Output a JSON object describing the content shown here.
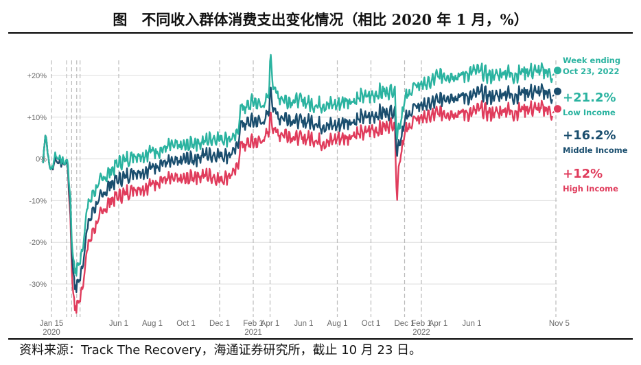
{
  "title": "图　不同收入群体消费支出变化情况（相比 2020 年 1 月，%）",
  "source": "资料来源：Track The Recovery，海通证券研究所，截止 10 月 23 日。",
  "colors": {
    "low_income": "#2bb3a0",
    "middle_income": "#1a4e6e",
    "high_income": "#e03c5c",
    "gridline": "#dddddd",
    "vline": "#bbbbbb"
  },
  "chart_data": {
    "type": "line",
    "title": "",
    "xlabel": "",
    "ylabel": "",
    "ylim": [
      -37,
      26
    ],
    "yticks": [
      "+20%",
      "+10%",
      "0%",
      "-10%",
      "-20%",
      "-30%"
    ],
    "ytick_values": [
      20,
      10,
      0,
      -10,
      -20,
      -30
    ],
    "xticks": [
      {
        "month": 0.5,
        "label": "Jan 15",
        "sub": "2020"
      },
      {
        "month": 4.5,
        "label": "Jun 1",
        "sub": ""
      },
      {
        "month": 6.5,
        "label": "Aug 1",
        "sub": ""
      },
      {
        "month": 8.5,
        "label": "Oct 1",
        "sub": ""
      },
      {
        "month": 10.5,
        "label": "Dec 1",
        "sub": ""
      },
      {
        "month": 12.5,
        "label": "Feb 1",
        "sub": "2021"
      },
      {
        "month": 13.5,
        "label": "Apr 1",
        "sub": ""
      },
      {
        "month": 15.5,
        "label": "Jun 1",
        "sub": ""
      },
      {
        "month": 17.5,
        "label": "Aug 1",
        "sub": ""
      },
      {
        "month": 19.5,
        "label": "Oct 1",
        "sub": ""
      },
      {
        "month": 21.5,
        "label": "Dec 1",
        "sub": ""
      },
      {
        "month": 22.5,
        "label": "Feb 1",
        "sub": "2022"
      },
      {
        "month": 23.5,
        "label": "Apr 1",
        "sub": ""
      },
      {
        "month": 25.5,
        "label": "Jun 1",
        "sub": ""
      },
      {
        "month": 30.7,
        "label": "Nov 5",
        "sub": ""
      }
    ],
    "vlines_months": [
      0.5,
      1.4,
      1.7,
      2.0,
      2.2,
      4.5,
      10.5,
      12.5,
      13.5,
      17.5,
      19.5,
      21.5,
      22.5,
      30.5
    ],
    "series": [
      {
        "name": "Low Income",
        "values": [
          [
            0.0,
            -1
          ],
          [
            0.15,
            7
          ],
          [
            0.3,
            0
          ],
          [
            0.5,
            -3
          ],
          [
            0.7,
            1
          ],
          [
            1.0,
            0
          ],
          [
            1.3,
            -1
          ],
          [
            1.45,
            0
          ],
          [
            1.6,
            -8
          ],
          [
            1.75,
            -22
          ],
          [
            1.9,
            -27
          ],
          [
            2.05,
            -26
          ],
          [
            2.3,
            -23
          ],
          [
            2.6,
            -12
          ],
          [
            3.0,
            -8
          ],
          [
            3.5,
            -5
          ],
          [
            4.0,
            -3
          ],
          [
            4.5,
            -1
          ],
          [
            5.0,
            0
          ],
          [
            5.5,
            1
          ],
          [
            6.0,
            1
          ],
          [
            6.5,
            2
          ],
          [
            7.0,
            2
          ],
          [
            7.5,
            3
          ],
          [
            8.0,
            3
          ],
          [
            8.5,
            3
          ],
          [
            9.0,
            4
          ],
          [
            9.5,
            4
          ],
          [
            10.0,
            5
          ],
          [
            10.5,
            5
          ],
          [
            11.0,
            5
          ],
          [
            11.5,
            5
          ],
          [
            11.8,
            13
          ],
          [
            12.0,
            12
          ],
          [
            12.3,
            13
          ],
          [
            12.5,
            14
          ],
          [
            12.8,
            13
          ],
          [
            13.2,
            13
          ],
          [
            13.4,
            15
          ],
          [
            13.55,
            25
          ],
          [
            13.7,
            17
          ],
          [
            14.0,
            15
          ],
          [
            14.5,
            14
          ],
          [
            15.0,
            14
          ],
          [
            15.5,
            14
          ],
          [
            16.0,
            13
          ],
          [
            16.5,
            13
          ],
          [
            17.0,
            13
          ],
          [
            17.5,
            13
          ],
          [
            18.0,
            14
          ],
          [
            18.5,
            14
          ],
          [
            19.0,
            15
          ],
          [
            19.5,
            15
          ],
          [
            20.0,
            16
          ],
          [
            20.5,
            16
          ],
          [
            20.9,
            17
          ],
          [
            21.05,
            6
          ],
          [
            21.2,
            8
          ],
          [
            21.5,
            14
          ],
          [
            22.0,
            17
          ],
          [
            22.5,
            18
          ],
          [
            23.0,
            18
          ],
          [
            23.5,
            20
          ],
          [
            24.0,
            20
          ],
          [
            24.5,
            20
          ],
          [
            25.0,
            20
          ],
          [
            25.5,
            21
          ],
          [
            26.0,
            21
          ],
          [
            26.5,
            20
          ],
          [
            27.0,
            20
          ],
          [
            27.5,
            21
          ],
          [
            28.0,
            20
          ],
          [
            28.5,
            21
          ],
          [
            29.0,
            21
          ],
          [
            29.5,
            21
          ],
          [
            30.0,
            21
          ],
          [
            30.3,
            20
          ]
        ],
        "end_value": 21.2,
        "end_label": "+21.2%"
      },
      {
        "name": "Middle Income",
        "values": [
          [
            0.0,
            -1
          ],
          [
            0.15,
            7
          ],
          [
            0.3,
            0
          ],
          [
            0.5,
            -3
          ],
          [
            0.7,
            0
          ],
          [
            1.0,
            -1
          ],
          [
            1.3,
            -1
          ],
          [
            1.45,
            -1
          ],
          [
            1.6,
            -10
          ],
          [
            1.75,
            -25
          ],
          [
            1.9,
            -31
          ],
          [
            2.05,
            -30
          ],
          [
            2.3,
            -27
          ],
          [
            2.6,
            -17
          ],
          [
            3.0,
            -12
          ],
          [
            3.5,
            -9
          ],
          [
            4.0,
            -6
          ],
          [
            4.5,
            -5
          ],
          [
            5.0,
            -4
          ],
          [
            5.5,
            -3
          ],
          [
            6.0,
            -3
          ],
          [
            6.5,
            -2
          ],
          [
            7.0,
            -1
          ],
          [
            7.5,
            -1
          ],
          [
            8.0,
            -1
          ],
          [
            8.5,
            0
          ],
          [
            9.0,
            0
          ],
          [
            9.5,
            1
          ],
          [
            10.0,
            1
          ],
          [
            10.5,
            1
          ],
          [
            11.0,
            1
          ],
          [
            11.5,
            2
          ],
          [
            11.8,
            9
          ],
          [
            12.0,
            8
          ],
          [
            12.3,
            9
          ],
          [
            12.5,
            9
          ],
          [
            12.8,
            9
          ],
          [
            13.2,
            9
          ],
          [
            13.4,
            11
          ],
          [
            13.55,
            17
          ],
          [
            13.7,
            12
          ],
          [
            14.0,
            10
          ],
          [
            14.5,
            10
          ],
          [
            15.0,
            9
          ],
          [
            15.5,
            9
          ],
          [
            16.0,
            9
          ],
          [
            16.5,
            8
          ],
          [
            17.0,
            8
          ],
          [
            17.5,
            8
          ],
          [
            18.0,
            9
          ],
          [
            18.5,
            9
          ],
          [
            19.0,
            10
          ],
          [
            19.5,
            10
          ],
          [
            20.0,
            11
          ],
          [
            20.5,
            11
          ],
          [
            20.9,
            12
          ],
          [
            21.05,
            2
          ],
          [
            21.2,
            4
          ],
          [
            21.5,
            9
          ],
          [
            22.0,
            12
          ],
          [
            22.5,
            13
          ],
          [
            23.0,
            13
          ],
          [
            23.5,
            14
          ],
          [
            24.0,
            15
          ],
          [
            24.5,
            15
          ],
          [
            25.0,
            15
          ],
          [
            25.5,
            15
          ],
          [
            26.0,
            16
          ],
          [
            26.5,
            15
          ],
          [
            27.0,
            15
          ],
          [
            27.5,
            16
          ],
          [
            28.0,
            15
          ],
          [
            28.5,
            16
          ],
          [
            29.0,
            16
          ],
          [
            29.5,
            16
          ],
          [
            30.0,
            16
          ],
          [
            30.3,
            15
          ]
        ],
        "end_value": 16.2,
        "end_label": "+16.2%"
      },
      {
        "name": "High Income",
        "values": [
          [
            0.0,
            -1
          ],
          [
            0.15,
            7
          ],
          [
            0.3,
            0
          ],
          [
            0.5,
            -3
          ],
          [
            0.7,
            0
          ],
          [
            1.0,
            -1
          ],
          [
            1.3,
            -1
          ],
          [
            1.45,
            -1
          ],
          [
            1.6,
            -12
          ],
          [
            1.75,
            -30
          ],
          [
            1.9,
            -36
          ],
          [
            2.05,
            -35
          ],
          [
            2.3,
            -32
          ],
          [
            2.6,
            -22
          ],
          [
            3.0,
            -17
          ],
          [
            3.5,
            -13
          ],
          [
            4.0,
            -10
          ],
          [
            4.5,
            -9
          ],
          [
            5.0,
            -8
          ],
          [
            5.5,
            -7
          ],
          [
            6.0,
            -7
          ],
          [
            6.5,
            -6
          ],
          [
            7.0,
            -5
          ],
          [
            7.5,
            -5
          ],
          [
            8.0,
            -5
          ],
          [
            8.5,
            -5
          ],
          [
            9.0,
            -4
          ],
          [
            9.5,
            -4
          ],
          [
            10.0,
            -4
          ],
          [
            10.5,
            -5
          ],
          [
            11.0,
            -4
          ],
          [
            11.5,
            -3
          ],
          [
            11.8,
            4
          ],
          [
            12.0,
            3
          ],
          [
            12.3,
            4
          ],
          [
            12.5,
            4
          ],
          [
            12.8,
            4
          ],
          [
            13.2,
            5
          ],
          [
            13.4,
            6
          ],
          [
            13.55,
            11
          ],
          [
            13.7,
            7
          ],
          [
            14.0,
            6
          ],
          [
            14.5,
            6
          ],
          [
            15.0,
            5
          ],
          [
            15.5,
            5
          ],
          [
            16.0,
            5
          ],
          [
            16.5,
            4
          ],
          [
            17.0,
            4
          ],
          [
            17.5,
            5
          ],
          [
            18.0,
            5
          ],
          [
            18.5,
            6
          ],
          [
            19.0,
            6
          ],
          [
            19.5,
            7
          ],
          [
            20.0,
            7
          ],
          [
            20.5,
            8
          ],
          [
            20.9,
            9
          ],
          [
            21.05,
            -9
          ],
          [
            21.2,
            0
          ],
          [
            21.5,
            6
          ],
          [
            22.0,
            9
          ],
          [
            22.5,
            10
          ],
          [
            23.0,
            10
          ],
          [
            23.5,
            11
          ],
          [
            24.0,
            11
          ],
          [
            24.5,
            11
          ],
          [
            25.0,
            11
          ],
          [
            25.5,
            11
          ],
          [
            26.0,
            12
          ],
          [
            26.5,
            11
          ],
          [
            27.0,
            11
          ],
          [
            27.5,
            12
          ],
          [
            28.0,
            11
          ],
          [
            28.5,
            12
          ],
          [
            29.0,
            12
          ],
          [
            29.5,
            12
          ],
          [
            30.0,
            12
          ],
          [
            30.3,
            11
          ]
        ],
        "end_value": 12,
        "end_label": "+12%"
      }
    ],
    "annotations": {
      "week_label_1": "Week ending",
      "week_label_2": "Oct 23, 2022"
    }
  }
}
